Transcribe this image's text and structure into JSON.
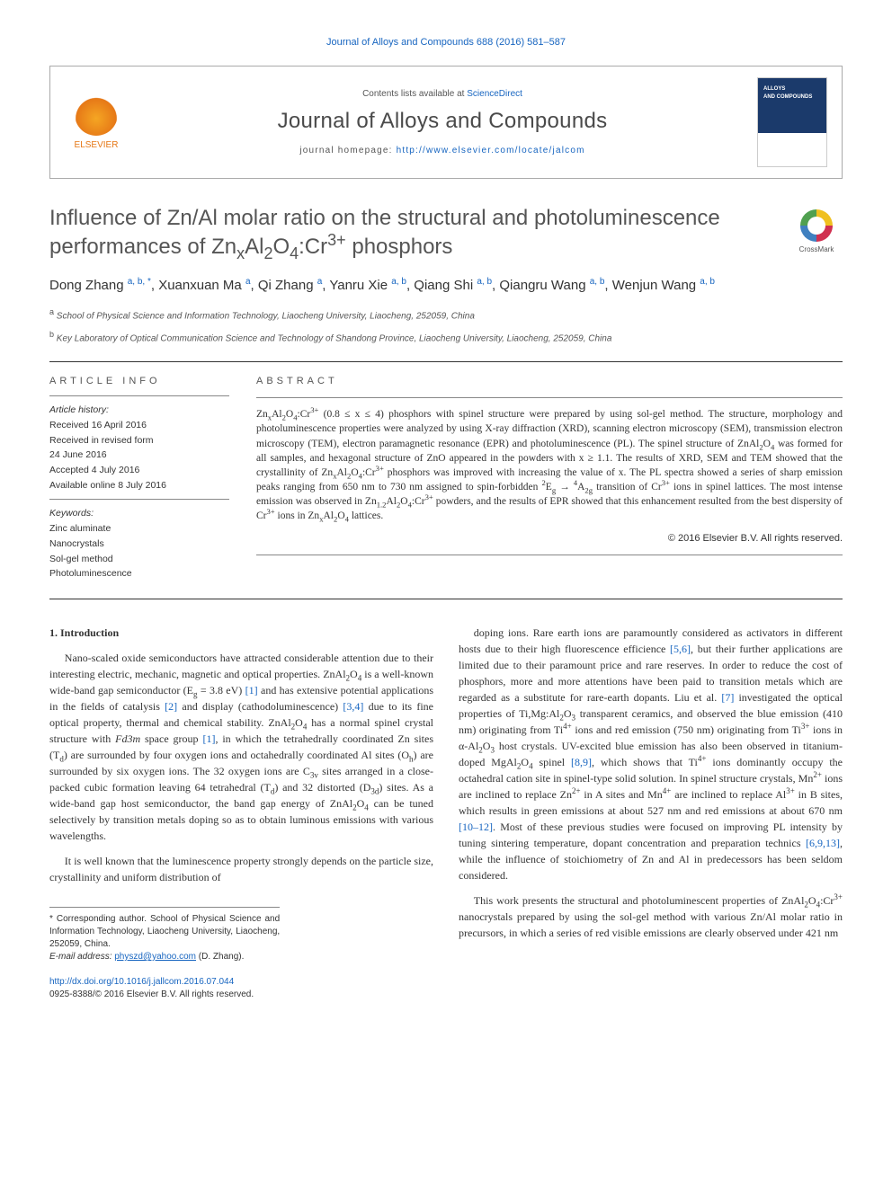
{
  "journal_ref": "Journal of Alloys and Compounds 688 (2016) 581–587",
  "header": {
    "contents_prefix": "Contents lists available at ",
    "contents_link": "ScienceDirect",
    "journal_name": "Journal of Alloys and Compounds",
    "homepage_prefix": "journal homepage: ",
    "homepage_link": "http://www.elsevier.com/locate/jalcom",
    "publisher": "ELSEVIER"
  },
  "crossmark": "CrossMark",
  "title_html": "Influence of Zn/Al molar ratio on the structural and photoluminescence performances of Zn<sub>x</sub>Al<sub>2</sub>O<sub>4</sub>:Cr<sup>3+</sup> phosphors",
  "authors_html": "Dong Zhang <span class='sup'>a, b, *</span>, Xuanxuan Ma <span class='sup'>a</span>, Qi Zhang <span class='sup'>a</span>, Yanru Xie <span class='sup'>a, b</span>, Qiang Shi <span class='sup'>a, b</span>, Qiangru Wang <span class='sup'>a, b</span>, Wenjun Wang <span class='sup'>a, b</span>",
  "affiliations": [
    {
      "sup": "a",
      "text": "School of Physical Science and Information Technology, Liaocheng University, Liaocheng, 252059, China"
    },
    {
      "sup": "b",
      "text": "Key Laboratory of Optical Communication Science and Technology of Shandong Province, Liaocheng University, Liaocheng, 252059, China"
    }
  ],
  "article_info": {
    "head": "ARTICLE INFO",
    "history_label": "Article history:",
    "received": "Received 16 April 2016",
    "revised1": "Received in revised form",
    "revised2": "24 June 2016",
    "accepted": "Accepted 4 July 2016",
    "online": "Available online 8 July 2016",
    "keywords_label": "Keywords:",
    "keywords": [
      "Zinc aluminate",
      "Nanocrystals",
      "Sol-gel method",
      "Photoluminescence"
    ]
  },
  "abstract": {
    "head": "ABSTRACT",
    "body_html": "Zn<sub>x</sub>Al<sub>2</sub>O<sub>4</sub>:Cr<sup>3+</sup> (0.8 ≤ x ≤ 4) phosphors with spinel structure were prepared by using sol-gel method. The structure, morphology and photoluminescence properties were analyzed by using X-ray diffraction (XRD), scanning electron microscopy (SEM), transmission electron microscopy (TEM), electron paramagnetic resonance (EPR) and photoluminescence (PL). The spinel structure of ZnAl<sub>2</sub>O<sub>4</sub> was formed for all samples, and hexagonal structure of ZnO appeared in the powders with x ≥ 1.1. The results of XRD, SEM and TEM showed that the crystallinity of Zn<sub>x</sub>Al<sub>2</sub>O<sub>4</sub>:Cr<sup>3+</sup> phosphors was improved with increasing the value of x. The PL spectra showed a series of sharp emission peaks ranging from 650 nm to 730 nm assigned to spin-forbidden <sup>2</sup>E<sub>g</sub> → <sup>4</sup>A<sub>2g</sub> transition of Cr<sup>3+</sup> ions in spinel lattices. The most intense emission was observed in Zn<sub>1.2</sub>Al<sub>2</sub>O<sub>4</sub>:Cr<sup>3+</sup> powders, and the results of EPR showed that this enhancement resulted from the best dispersity of Cr<sup>3+</sup> ions in Zn<sub>x</sub>Al<sub>2</sub>O<sub>4</sub> lattices.",
    "copyright": "© 2016 Elsevier B.V. All rights reserved."
  },
  "body": {
    "section_head": "1. Introduction",
    "left_paras_html": [
      "Nano-scaled oxide semiconductors have attracted considerable attention due to their interesting electric, mechanic, magnetic and optical properties. ZnAl<sub>2</sub>O<sub>4</sub> is a well-known wide-band gap semiconductor (E<sub>g</sub> = 3.8 eV) <span class='ref'>[1]</span> and has extensive potential applications in the fields of catalysis <span class='ref'>[2]</span> and display (cathodoluminescence) <span class='ref'>[3,4]</span> due to its fine optical property, thermal and chemical stability. ZnAl<sub>2</sub>O<sub>4</sub> has a normal spinel crystal structure with <i>Fd3m</i> space group <span class='ref'>[1]</span>, in which the tetrahedrally coordinated Zn sites (T<sub>d</sub>) are surrounded by four oxygen ions and octahedrally coordinated Al sites (O<sub>h</sub>) are surrounded by six oxygen ions. The 32 oxygen ions are C<sub>3v</sub> sites arranged in a close-packed cubic formation leaving 64 tetrahedral (T<sub>d</sub>) and 32 distorted (D<sub>3d</sub>) sites. As a wide-band gap host semiconductor, the band gap energy of ZnAl<sub>2</sub>O<sub>4</sub> can be tuned selectively by transition metals doping so as to obtain luminous emissions with various wavelengths.",
      "It is well known that the luminescence property strongly depends on the particle size, crystallinity and uniform distribution of"
    ],
    "right_paras_html": [
      "doping ions. Rare earth ions are paramountly considered as activators in different hosts due to their high fluorescence efficience <span class='ref'>[5,6]</span>, but their further applications are limited due to their paramount price and rare reserves. In order to reduce the cost of phosphors, more and more attentions have been paid to transition metals which are regarded as a substitute for rare-earth dopants. Liu et al. <span class='ref'>[7]</span> investigated the optical properties of Ti,Mg:Al<sub>2</sub>O<sub>3</sub> transparent ceramics, and observed the blue emission (410 nm) originating from Ti<sup>4+</sup> ions and red emission (750 nm) originating from Ti<sup>3+</sup> ions in α-Al<sub>2</sub>O<sub>3</sub> host crystals. UV-excited blue emission has also been observed in titanium-doped MgAl<sub>2</sub>O<sub>4</sub> spinel <span class='ref'>[8,9]</span>, which shows that Ti<sup>4+</sup> ions dominantly occupy the octahedral cation site in spinel-type solid solution. In spinel structure crystals, Mn<sup>2+</sup> ions are inclined to replace Zn<sup>2+</sup> in A sites and Mn<sup>4+</sup> are inclined to replace Al<sup>3+</sup> in B sites, which results in green emissions at about 527 nm and red emissions at about 670 nm <span class='ref'>[10–12]</span>. Most of these previous studies were focused on improving PL intensity by tuning sintering temperature, dopant concentration and preparation technics <span class='ref'>[6,9,13]</span>, while the influence of stoichiometry of Zn and Al in predecessors has been seldom considered.",
      "This work presents the structural and photoluminescent properties of ZnAl<sub>2</sub>O<sub>4</sub>:Cr<sup>3+</sup> nanocrystals prepared by using the sol-gel method with various Zn/Al molar ratio in precursors, in which a series of red visible emissions are clearly observed under 421 nm"
    ]
  },
  "footnote": {
    "corr": "* Corresponding author. School of Physical Science and Information Technology, Liaocheng University, Liaocheng, 252059, China.",
    "email_label": "E-mail address:",
    "email": "physzd@yahoo.com",
    "email_who": "(D. Zhang)."
  },
  "footer": {
    "doi": "http://dx.doi.org/10.1016/j.jallcom.2016.07.044",
    "issn_line": "0925-8388/© 2016 Elsevier B.V. All rights reserved."
  },
  "colors": {
    "link": "#1765c0",
    "elsevier": "#e67817",
    "text": "#333333",
    "heading_gray": "#555555"
  }
}
